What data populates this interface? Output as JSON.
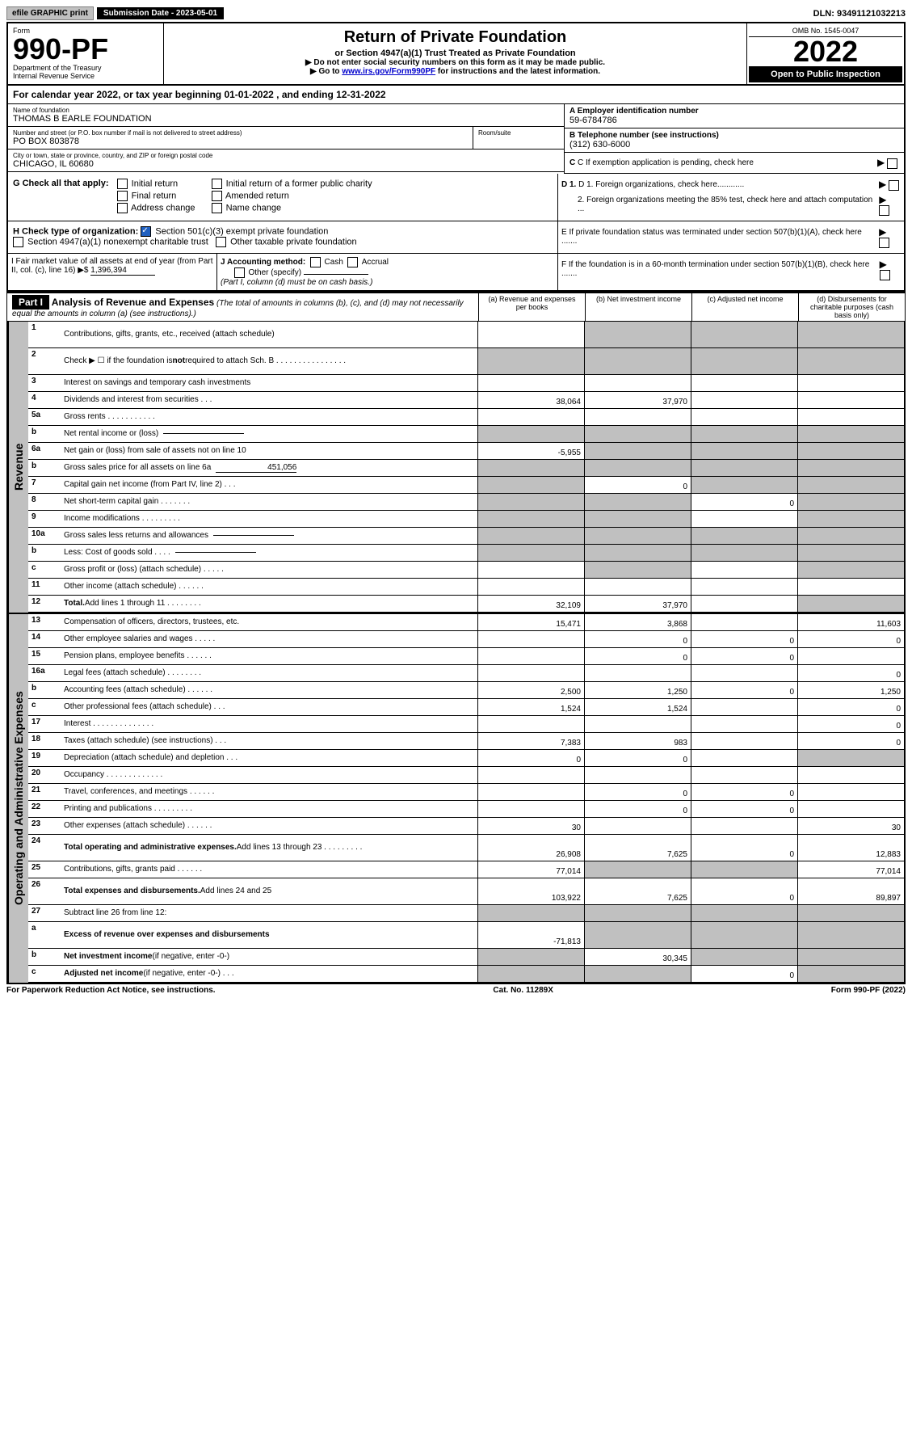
{
  "top": {
    "efile": "efile GRAPHIC print",
    "sub_date_label": "Submission Date - 2023-05-01",
    "dln": "DLN: 93491121032213"
  },
  "header": {
    "form_label": "Form",
    "form_num": "990-PF",
    "dept": "Department of the Treasury",
    "irs": "Internal Revenue Service",
    "title": "Return of Private Foundation",
    "subtitle": "or Section 4947(a)(1) Trust Treated as Private Foundation",
    "instr1": "▶ Do not enter social security numbers on this form as it may be made public.",
    "instr2_pre": "▶ Go to ",
    "instr2_link": "www.irs.gov/Form990PF",
    "instr2_post": " for instructions and the latest information.",
    "omb": "OMB No. 1545-0047",
    "year": "2022",
    "open": "Open to Public Inspection"
  },
  "cal_year": "For calendar year 2022, or tax year beginning 01-01-2022             , and ending 12-31-2022",
  "meta": {
    "name_label": "Name of foundation",
    "name": "THOMAS B EARLE FOUNDATION",
    "addr_label": "Number and street (or P.O. box number if mail is not delivered to street address)",
    "addr": "PO BOX 803878",
    "room_label": "Room/suite",
    "room": "",
    "city_label": "City or town, state or province, country, and ZIP or foreign postal code",
    "city": "CHICAGO, IL  60680",
    "ein_label": "A Employer identification number",
    "ein": "59-6784786",
    "phone_label": "B Telephone number (see instructions)",
    "phone": "(312) 630-6000",
    "c_label": "C If exemption application is pending, check here",
    "d1": "D 1. Foreign organizations, check here............",
    "d2": "2. Foreign organizations meeting the 85% test, check here and attach computation ...",
    "e_label": "E  If private foundation status was terminated under section 507(b)(1)(A), check here .......",
    "f_label": "F  If the foundation is in a 60-month termination under section 507(b)(1)(B), check here .......",
    "g_label": "G Check all that apply:",
    "g_opts": [
      "Initial return",
      "Initial return of a former public charity",
      "Final return",
      "Amended return",
      "Address change",
      "Name change"
    ],
    "h_label": "H Check type of organization:",
    "h_501": "Section 501(c)(3) exempt private foundation",
    "h_4947": "Section 4947(a)(1) nonexempt charitable trust",
    "h_other": "Other taxable private foundation",
    "i_label": "I Fair market value of all assets at end of year (from Part II, col. (c), line 16) ▶$",
    "i_val": "1,396,394",
    "j_label": "J Accounting method:",
    "j_cash": "Cash",
    "j_accrual": "Accrual",
    "j_other": "Other (specify)",
    "j_note": "(Part I, column (d) must be on cash basis.)"
  },
  "part1": {
    "label": "Part I",
    "title": "Analysis of Revenue and Expenses",
    "note": "(The total of amounts in columns (b), (c), and (d) may not necessarily equal the amounts in column (a) (see instructions).)",
    "col_a": "(a)  Revenue and expenses per books",
    "col_b": "(b)  Net investment income",
    "col_c": "(c)  Adjusted net income",
    "col_d": "(d)  Disbursements for charitable purposes (cash basis only)"
  },
  "sides": {
    "revenue": "Revenue",
    "expenses": "Operating and Administrative Expenses"
  },
  "rows": [
    {
      "n": "1",
      "d": "Contributions, gifts, grants, etc., received (attach schedule)",
      "tall": true,
      "grey": [
        false,
        true,
        true,
        true
      ]
    },
    {
      "n": "2",
      "d": "Check ▶ ☐ if the foundation is <b>not</b> required to attach Sch. B   .  .  .  .  .  .  .  .  .  .  .  .  .  .  .  .",
      "tall": true,
      "grey": [
        true,
        true,
        true,
        true
      ]
    },
    {
      "n": "3",
      "d": "Interest on savings and temporary cash investments"
    },
    {
      "n": "4",
      "d": "Dividends and interest from securities   .   .   .",
      "a": "38,064",
      "b": "37,970"
    },
    {
      "n": "5a",
      "d": "Gross rents   .   .   .   .   .   .   .   .   .   .   ."
    },
    {
      "n": "b",
      "d": "Net rental income or (loss)",
      "sub": "",
      "grey": [
        true,
        true,
        true,
        true
      ]
    },
    {
      "n": "6a",
      "d": "Net gain or (loss) from sale of assets not on line 10",
      "a": "-5,955",
      "grey": [
        false,
        true,
        true,
        true
      ]
    },
    {
      "n": "b",
      "d": "Gross sales price for all assets on line 6a",
      "sub": "451,056",
      "grey": [
        true,
        true,
        true,
        true
      ]
    },
    {
      "n": "7",
      "d": "Capital gain net income (from Part IV, line 2)   .   .   .",
      "b": "0",
      "grey": [
        true,
        false,
        true,
        true
      ]
    },
    {
      "n": "8",
      "d": "Net short-term capital gain  .   .   .   .   .   .   .",
      "c": "0",
      "grey": [
        true,
        true,
        false,
        true
      ]
    },
    {
      "n": "9",
      "d": "Income modifications  .   .   .   .   .   .   .   .   .",
      "grey": [
        true,
        true,
        false,
        true
      ]
    },
    {
      "n": "10a",
      "d": "Gross sales less returns and allowances",
      "sub": "",
      "grey": [
        true,
        true,
        true,
        true
      ]
    },
    {
      "n": "b",
      "d": "Less: Cost of goods sold   .   .   .   .",
      "sub": "",
      "grey": [
        true,
        true,
        true,
        true
      ]
    },
    {
      "n": "c",
      "d": "Gross profit or (loss) (attach schedule)   .   .   .   .   .",
      "grey": [
        false,
        true,
        false,
        true
      ]
    },
    {
      "n": "11",
      "d": "Other income (attach schedule)   .   .   .   .   .   ."
    },
    {
      "n": "12",
      "d": "<b>Total.</b> Add lines 1 through 11   .   .   .   .   .   .   .   .",
      "a": "32,109",
      "b": "37,970",
      "grey": [
        false,
        false,
        false,
        true
      ]
    }
  ],
  "exp_rows": [
    {
      "n": "13",
      "d": "Compensation of officers, directors, trustees, etc.",
      "a": "15,471",
      "b": "3,868",
      "d4": "11,603"
    },
    {
      "n": "14",
      "d": "Other employee salaries and wages   .   .   .   .   .",
      "b": "0",
      "c": "0",
      "d4": "0"
    },
    {
      "n": "15",
      "d": "Pension plans, employee benefits   .   .   .   .   .   .",
      "b": "0",
      "c": "0"
    },
    {
      "n": "16a",
      "d": "Legal fees (attach schedule)  .   .   .   .   .   .   .   .",
      "d4": "0"
    },
    {
      "n": "b",
      "d": "Accounting fees (attach schedule)  .   .   .   .   .   .",
      "a": "2,500",
      "b": "1,250",
      "c": "0",
      "d4": "1,250"
    },
    {
      "n": "c",
      "d": "Other professional fees (attach schedule)   .   .   .",
      "a": "1,524",
      "b": "1,524",
      "d4": "0"
    },
    {
      "n": "17",
      "d": "Interest  .   .   .   .   .   .   .   .   .   .   .   .   .   .",
      "d4": "0"
    },
    {
      "n": "18",
      "d": "Taxes (attach schedule) (see instructions)   .   .   .",
      "a": "7,383",
      "b": "983",
      "d4": "0"
    },
    {
      "n": "19",
      "d": "Depreciation (attach schedule) and depletion   .   .   .",
      "a": "0",
      "b": "0",
      "grey": [
        false,
        false,
        false,
        true
      ]
    },
    {
      "n": "20",
      "d": "Occupancy  .   .   .   .   .   .   .   .   .   .   .   .   ."
    },
    {
      "n": "21",
      "d": "Travel, conferences, and meetings  .   .   .   .   .   .",
      "b": "0",
      "c": "0"
    },
    {
      "n": "22",
      "d": "Printing and publications  .   .   .   .   .   .   .   .   .",
      "b": "0",
      "c": "0"
    },
    {
      "n": "23",
      "d": "Other expenses (attach schedule)  .   .   .   .   .   .",
      "a": "30",
      "d4": "30"
    },
    {
      "n": "24",
      "d": "<b>Total operating and administrative expenses.</b> Add lines 13 through 23   .   .   .   .   .   .   .   .   .",
      "a": "26,908",
      "b": "7,625",
      "c": "0",
      "d4": "12,883",
      "tall": true
    },
    {
      "n": "25",
      "d": "Contributions, gifts, grants paid   .   .   .   .   .   .",
      "a": "77,014",
      "d4": "77,014",
      "grey": [
        false,
        true,
        true,
        false
      ]
    },
    {
      "n": "26",
      "d": "<b>Total expenses and disbursements.</b> Add lines 24 and 25",
      "a": "103,922",
      "b": "7,625",
      "c": "0",
      "d4": "89,897",
      "tall": true
    },
    {
      "n": "27",
      "d": "Subtract line 26 from line 12:",
      "grey": [
        true,
        true,
        true,
        true
      ]
    },
    {
      "n": "a",
      "d": "<b>Excess of revenue over expenses and disbursements</b>",
      "a": "-71,813",
      "tall": true,
      "grey": [
        false,
        true,
        true,
        true
      ]
    },
    {
      "n": "b",
      "d": "<b>Net investment income</b> (if negative, enter -0-)",
      "b": "30,345",
      "grey": [
        true,
        false,
        true,
        true
      ]
    },
    {
      "n": "c",
      "d": "<b>Adjusted net income</b> (if negative, enter -0-)   .   .   .",
      "c": "0",
      "grey": [
        true,
        true,
        false,
        true
      ]
    }
  ],
  "footer": {
    "left": "For Paperwork Reduction Act Notice, see instructions.",
    "mid": "Cat. No. 11289X",
    "right": "Form 990-PF (2022)"
  }
}
